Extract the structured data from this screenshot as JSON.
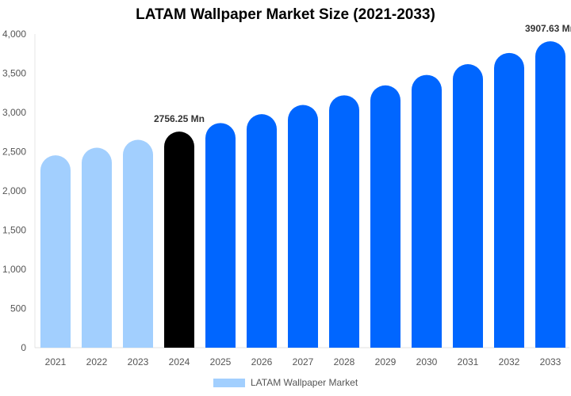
{
  "chart_data": {
    "type": "bar",
    "title": "LATAM Wallpaper Market Size (2021-2033)",
    "categories": [
      "2021",
      "2022",
      "2023",
      "2024",
      "2025",
      "2026",
      "2027",
      "2028",
      "2029",
      "2030",
      "2031",
      "2032",
      "2033"
    ],
    "series": [
      {
        "name": "LATAM Wallpaper Market",
        "values": [
          2453,
          2550,
          2651,
          2756.25,
          2865,
          2978,
          3096,
          3219,
          3346,
          3479,
          3616,
          3759,
          3907.63
        ]
      }
    ],
    "data_labels": {
      "3": "2756.25 Mn",
      "12": "3907.63 Mn"
    },
    "ylim": [
      0,
      4000
    ],
    "yticks": [
      0,
      500,
      1000,
      1500,
      2000,
      2500,
      3000,
      3500,
      4000
    ],
    "ytick_labels": [
      "0",
      "500",
      "1,000",
      "1,500",
      "2,000",
      "2,500",
      "3,000",
      "3,500",
      "4,000"
    ],
    "grid": false,
    "legend": "bottom",
    "colors": {
      "historical": "#a2cffe",
      "current": "#000000",
      "forecast": "#0066ff"
    },
    "xlabel": "",
    "ylabel": ""
  }
}
